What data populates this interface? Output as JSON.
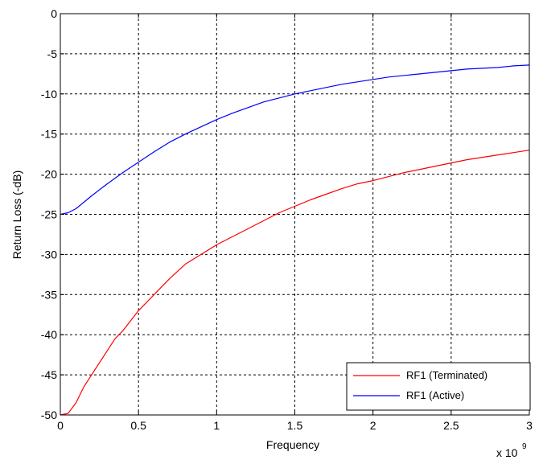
{
  "chart_data": {
    "type": "line",
    "title": "",
    "xlabel": "Frequency",
    "ylabel": "Return Loss (-dB)",
    "x_exponent_label": "x 10",
    "x_exponent_power": "9",
    "xlim": [
      0,
      3
    ],
    "ylim": [
      -50,
      0
    ],
    "xticks": [
      0,
      0.5,
      1,
      1.5,
      2,
      2.5,
      3
    ],
    "xtick_labels": [
      "0",
      "0.5",
      "1",
      "1.5",
      "2",
      "2.5",
      "3"
    ],
    "yticks": [
      -50,
      -45,
      -40,
      -35,
      -30,
      -25,
      -20,
      -15,
      -10,
      -5,
      0
    ],
    "ytick_labels": [
      "-50",
      "-45",
      "-40",
      "-35",
      "-30",
      "-25",
      "-20",
      "-15",
      "-10",
      "-5",
      "0"
    ],
    "grid": true,
    "legend_position": "bottom-right",
    "series": [
      {
        "name": "RF1 (Terminated)",
        "color": "#ff0000",
        "x": [
          0,
          0.05,
          0.1,
          0.15,
          0.2,
          0.25,
          0.3,
          0.35,
          0.4,
          0.5,
          0.6,
          0.7,
          0.8,
          0.9,
          1.0,
          1.1,
          1.2,
          1.3,
          1.4,
          1.5,
          1.6,
          1.7,
          1.8,
          1.9,
          2.0,
          2.1,
          2.2,
          2.3,
          2.4,
          2.5,
          2.6,
          2.7,
          2.8,
          2.9,
          3.0
        ],
        "y": [
          -50,
          -49.8,
          -48.5,
          -46.5,
          -45,
          -43.5,
          -42,
          -40.5,
          -39.5,
          -37,
          -35,
          -33,
          -31.2,
          -30,
          -28.8,
          -27.8,
          -26.8,
          -25.8,
          -24.8,
          -24,
          -23.2,
          -22.5,
          -21.8,
          -21.2,
          -20.8,
          -20.3,
          -19.8,
          -19.4,
          -19,
          -18.6,
          -18.2,
          -17.9,
          -17.6,
          -17.3,
          -17
        ]
      },
      {
        "name": "RF1 (Active)",
        "color": "#0000ff",
        "x": [
          0,
          0.05,
          0.1,
          0.15,
          0.2,
          0.3,
          0.4,
          0.5,
          0.6,
          0.7,
          0.8,
          0.9,
          1.0,
          1.1,
          1.2,
          1.3,
          1.4,
          1.5,
          1.6,
          1.7,
          1.8,
          1.9,
          2.0,
          2.1,
          2.2,
          2.3,
          2.4,
          2.5,
          2.6,
          2.7,
          2.8,
          2.9,
          3.0
        ],
        "y": [
          -25,
          -24.8,
          -24.3,
          -23.5,
          -22.7,
          -21.2,
          -19.8,
          -18.5,
          -17.2,
          -16,
          -15,
          -14.1,
          -13.2,
          -12.4,
          -11.7,
          -11,
          -10.5,
          -10,
          -9.6,
          -9.2,
          -8.8,
          -8.5,
          -8.2,
          -7.9,
          -7.7,
          -7.5,
          -7.3,
          -7.1,
          -6.9,
          -6.8,
          -6.7,
          -6.5,
          -6.4
        ]
      }
    ]
  }
}
